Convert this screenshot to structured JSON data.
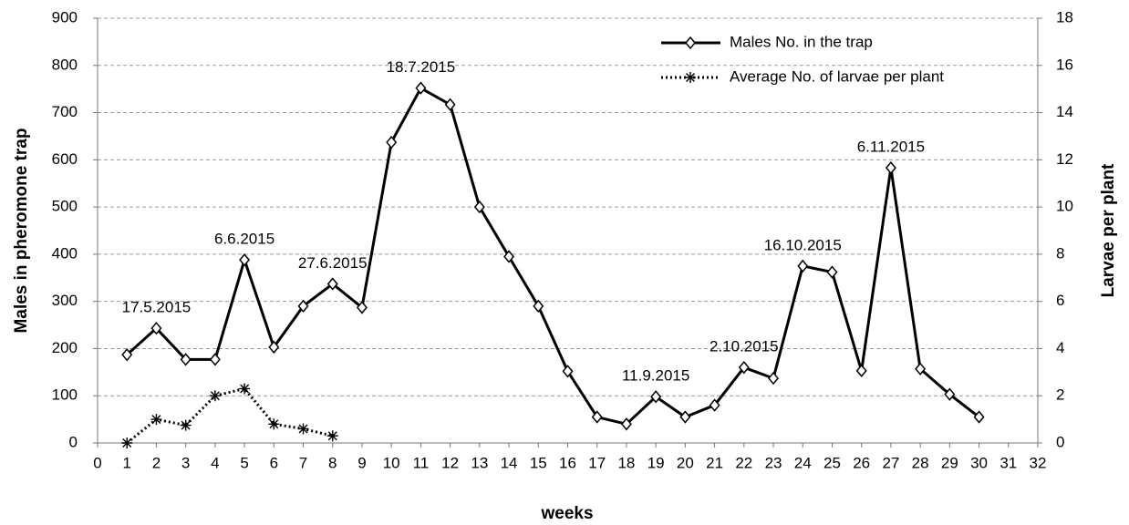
{
  "chart_data": {
    "type": "line",
    "xlabel": "weeks",
    "ylabel": "Males in pheromone trap",
    "y2label": "Larvae per plant",
    "x": [
      1,
      2,
      3,
      4,
      5,
      6,
      7,
      8,
      9,
      10,
      11,
      12,
      13,
      14,
      15,
      16,
      17,
      18,
      19,
      20,
      21,
      22,
      23,
      24,
      25,
      26,
      27,
      28,
      29,
      30
    ],
    "series": [
      {
        "name": "Males No. in the trap",
        "color": "#000000",
        "style": "solid",
        "marker": "diamond",
        "values": [
          187,
          243,
          177,
          177,
          388,
          203,
          290,
          337,
          287,
          637,
          752,
          717,
          500,
          395,
          290,
          152,
          55,
          40,
          98,
          55,
          80,
          160,
          137,
          375,
          362,
          153,
          583,
          157,
          103,
          55
        ]
      },
      {
        "name": "Average No. of larvae per plant",
        "color": "#000000",
        "style": "dotted",
        "marker": "asterisk",
        "axis": "y2",
        "values": [
          0,
          1,
          0.75,
          2,
          2.3,
          0.8,
          0.6,
          0.3,
          null,
          null,
          null,
          null,
          null,
          null,
          null,
          null,
          null,
          null,
          null,
          null,
          null,
          null,
          null,
          null,
          null,
          null,
          null,
          null,
          null,
          null
        ]
      }
    ],
    "annotations": [
      {
        "text": "17.5.2015",
        "x": 2
      },
      {
        "text": "6.6.2015",
        "x": 5
      },
      {
        "text": "27.6.2015",
        "x": 8
      },
      {
        "text": "18.7.2015",
        "x": 11
      },
      {
        "text": "11.9.2015",
        "x": 19
      },
      {
        "text": "2.10.2015",
        "x": 22
      },
      {
        "text": "16.10.2015",
        "x": 24
      },
      {
        "text": "6.11.2015",
        "x": 27
      }
    ],
    "xlim": [
      0,
      32
    ],
    "xticks": [
      0,
      1,
      2,
      3,
      4,
      5,
      6,
      7,
      8,
      9,
      10,
      11,
      12,
      13,
      14,
      15,
      16,
      17,
      18,
      19,
      20,
      21,
      22,
      23,
      24,
      25,
      26,
      27,
      28,
      29,
      30,
      31,
      32
    ],
    "ylim": [
      0,
      900
    ],
    "yticks": [
      0,
      100,
      200,
      300,
      400,
      500,
      600,
      700,
      800,
      900
    ],
    "y2lim": [
      0,
      18
    ],
    "y2ticks": [
      0,
      2,
      4,
      6,
      8,
      10,
      12,
      14,
      16,
      18
    ],
    "grid": true,
    "legend": "top-right"
  }
}
